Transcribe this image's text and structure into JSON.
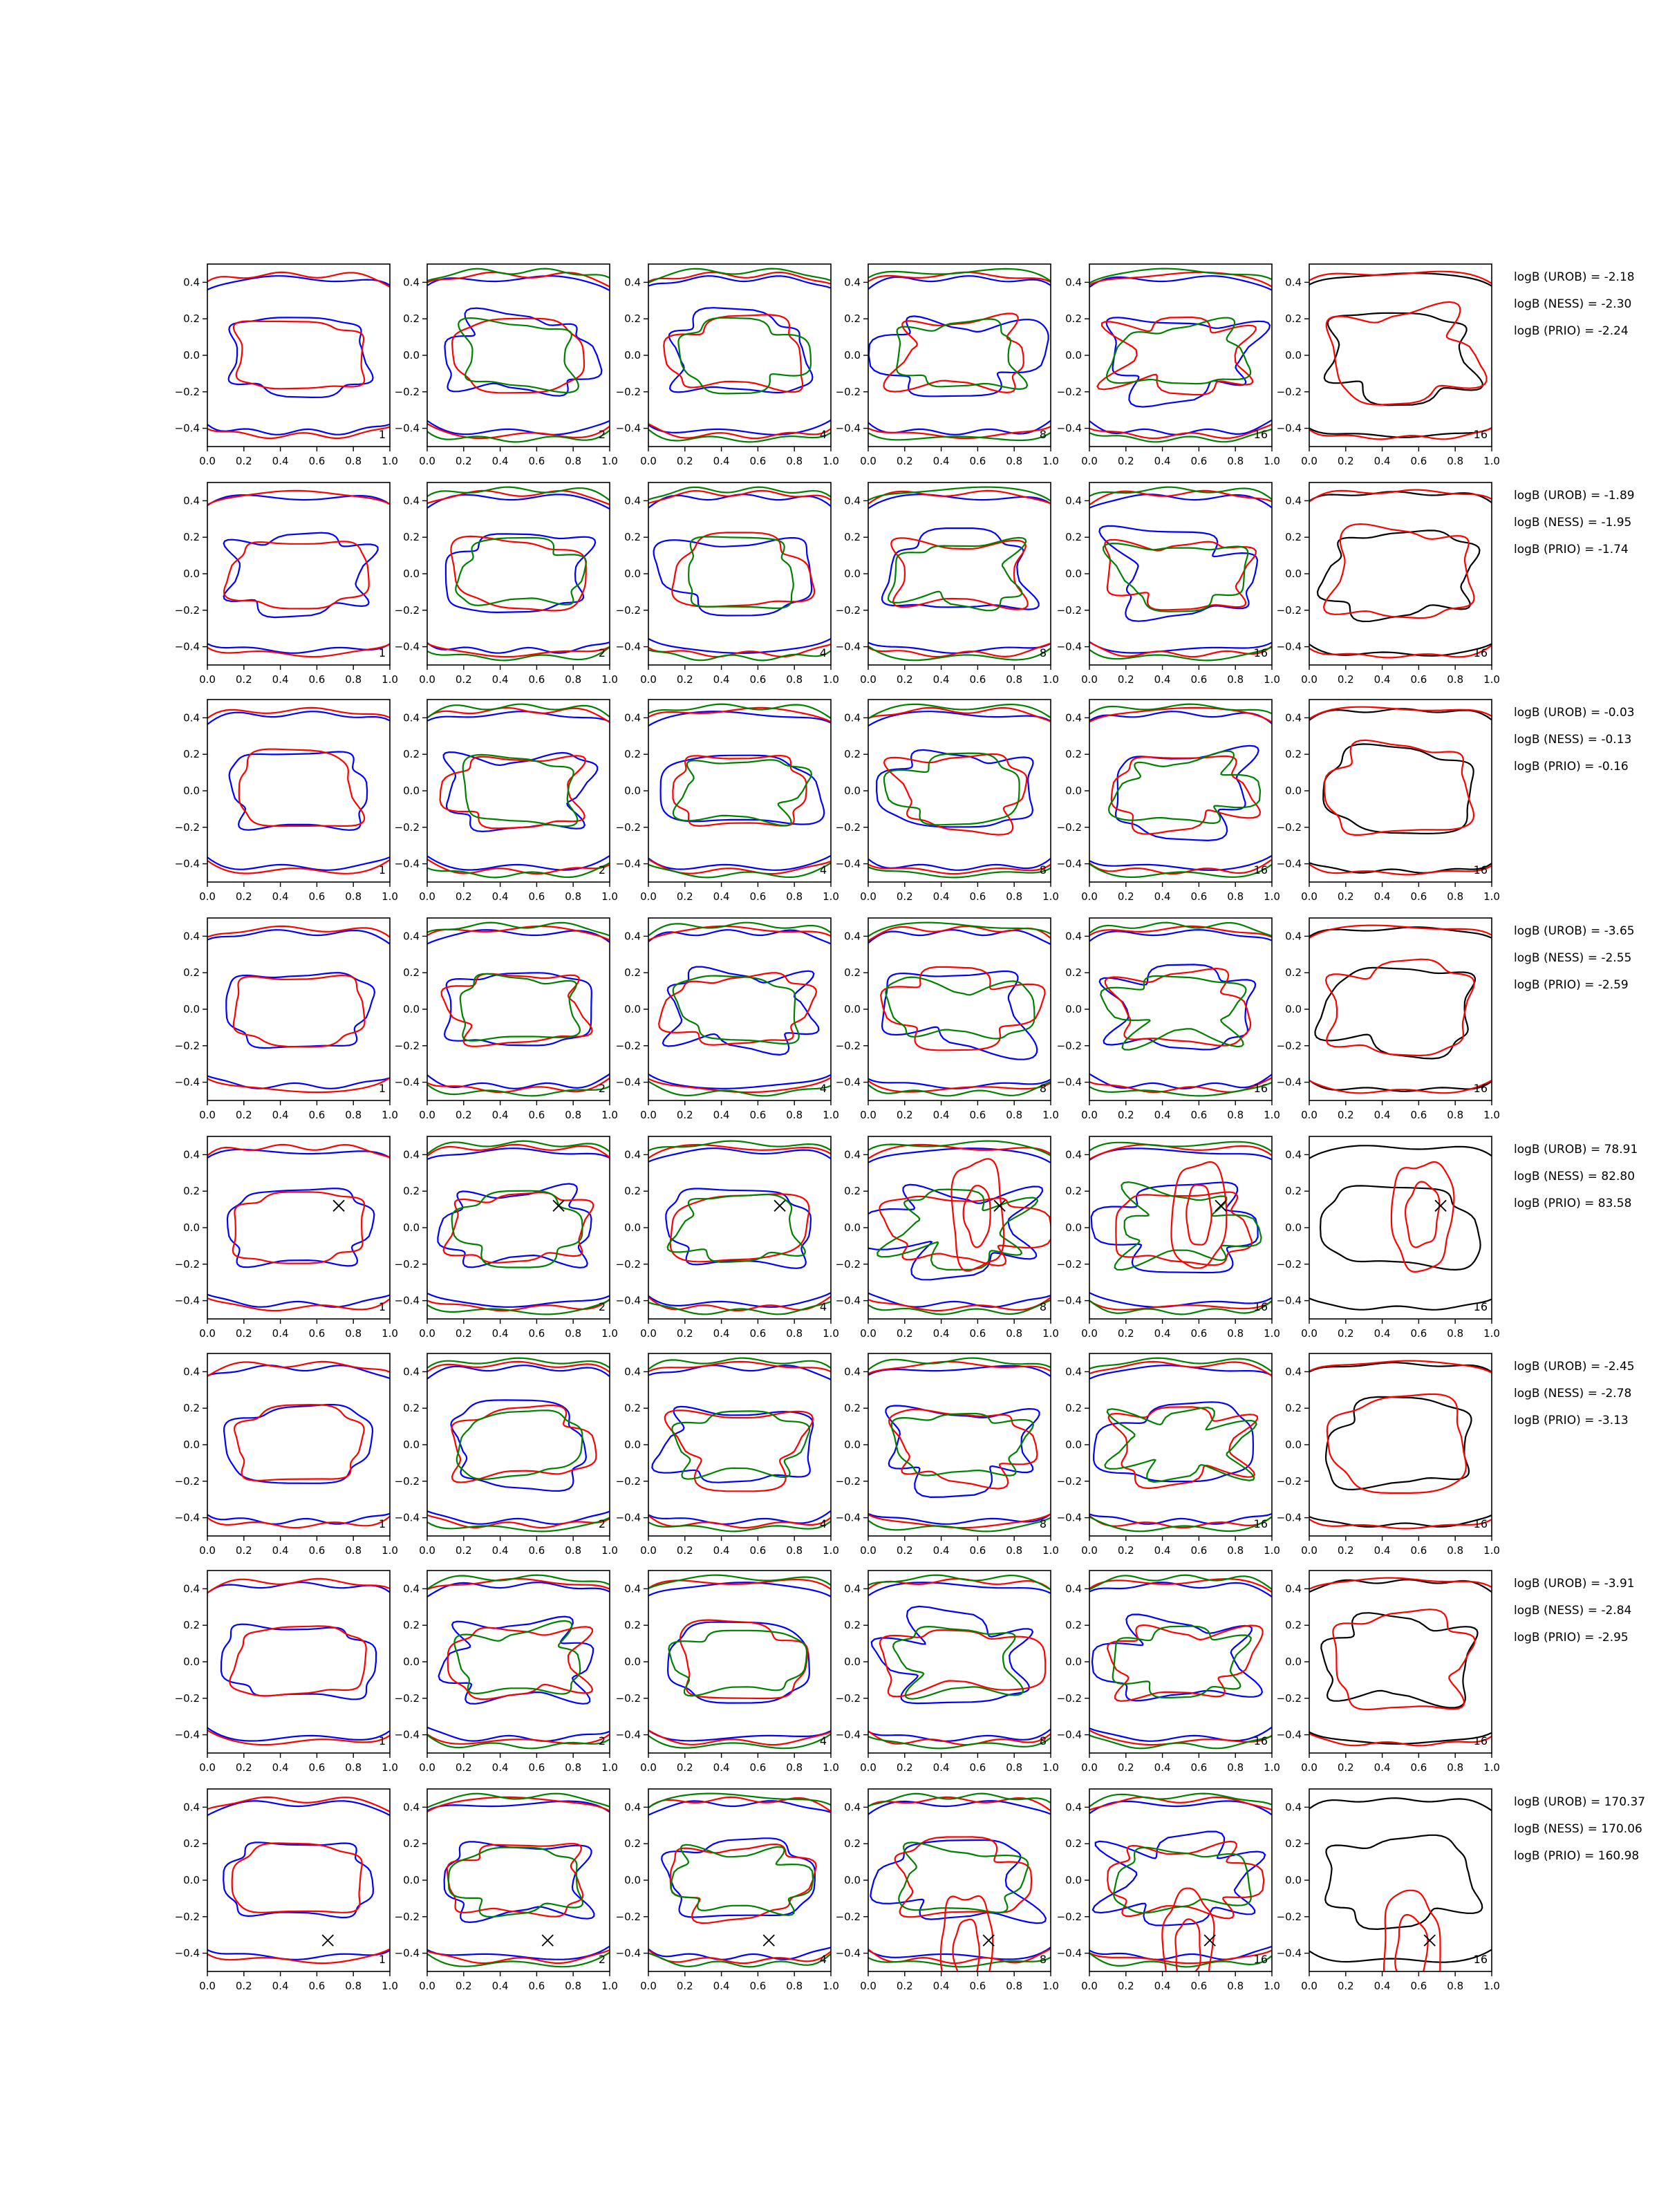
{
  "chart_data": {
    "type": "line",
    "layout": "8 rows x 6 panels of contour plots, with log Bayes factor annotations to the right of each row",
    "axes": {
      "xlim": [
        0.0,
        1.0
      ],
      "ylim": [
        -0.5,
        0.5
      ],
      "x_ticks": [
        "0.0",
        "0.2",
        "0.4",
        "0.6",
        "0.8",
        "1.0"
      ],
      "y_ticks": [
        "0.4",
        "0.2",
        "0.0",
        "−0.2",
        "−0.4"
      ]
    },
    "column_numbers": [
      "1",
      "2",
      "4",
      "8",
      "16",
      "16"
    ],
    "colors": {
      "blue": "#0000ff",
      "red": "#ff0000",
      "green": "#008000",
      "black": "#000000"
    },
    "rows": [
      {
        "annotations": [
          "logB (UROB) = -2.18",
          "logB (NESS) = -2.30",
          "logB (PRIO) = -2.24"
        ],
        "marker": null
      },
      {
        "annotations": [
          "logB (UROB) = -1.89",
          "logB (NESS) = -1.95",
          "logB (PRIO) = -1.74"
        ],
        "marker": null
      },
      {
        "annotations": [
          "logB (UROB) = -0.03",
          "logB (NESS) = -0.13",
          "logB (PRIO) = -0.16"
        ],
        "marker": null
      },
      {
        "annotations": [
          "logB (UROB) = -3.65",
          "logB (NESS) = -2.55",
          "logB (PRIO) = -2.59"
        ],
        "marker": null
      },
      {
        "annotations": [
          "logB (UROB) = 78.91",
          "logB (NESS) = 82.80",
          "logB (PRIO) = 83.58"
        ],
        "marker": [
          0.72,
          0.12
        ]
      },
      {
        "annotations": [
          "logB (UROB) = -2.45",
          "logB (NESS) = -2.78",
          "logB (PRIO) = -3.13"
        ],
        "marker": null
      },
      {
        "annotations": [
          "logB (UROB) = -3.91",
          "logB (NESS) = -2.84",
          "logB (PRIO) = -2.95"
        ],
        "marker": null
      },
      {
        "annotations": [
          "logB (UROB) = 170.37",
          "logB (NESS) = 170.06",
          "logB (PRIO) = 160.98"
        ],
        "marker": [
          0.66,
          -0.33
        ]
      }
    ]
  }
}
